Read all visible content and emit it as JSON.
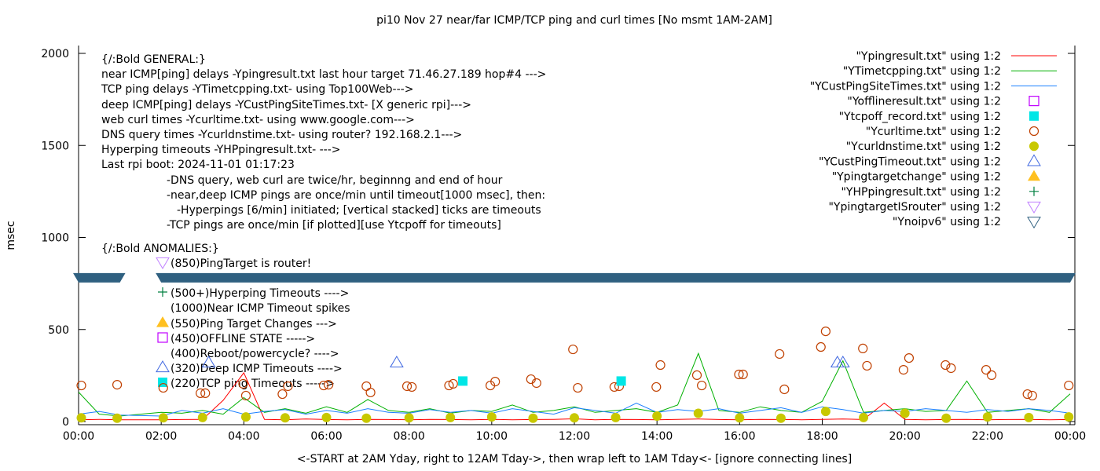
{
  "chart_data": {
    "type": "line",
    "title": "pi10 Nov 27  near/far ICMP/TCP ping and curl times [No msmt 1AM-2AM]",
    "xlabel": "<-START at 2AM Yday, right to 12AM Tday->, then wrap left to 1AM Tday<- [ignore connecting lines]",
    "ylabel": "msec",
    "ylim": [
      0,
      2000
    ],
    "xlim": [
      "00:00",
      "24:00"
    ],
    "yticks": [
      "0",
      "500",
      "1000",
      "1500",
      "2000"
    ],
    "xticks": [
      "00:00",
      "02:00",
      "04:00",
      "06:00",
      "08:00",
      "10:00",
      "12:00",
      "14:00",
      "16:00",
      "18:00",
      "20:00",
      "22:00",
      "00:00"
    ],
    "grid": false,
    "legend_position": "top-right",
    "notes": [
      "{/:Bold GENERAL:}",
      "near ICMP[ping] delays -Ypingresult.txt last hour target 71.46.27.189 hop#4 --->",
      "TCP ping delays -YTimetcpping.txt- using Top100Web--->",
      "deep ICMP[ping] delays -YCustPingSiteTimes.txt- [X generic rpi]--->",
      "web curl times -Ycurltime.txt- using www.google.com--->",
      "DNS query times -Ycurldnstime.txt- using router? 192.168.2.1--->",
      "Hyperping timeouts -YHPpingresult.txt- --->",
      "Last rpi boot: 2024-11-01 01:17:23",
      "-DNS query, web curl are twice/hr, beginnng and end of hour",
      "-near,deep ICMP pings are once/min until timeout[1000 msec], then:",
      "-Hyperpings [6/min] initiated; [vertical stacked] ticks are timeouts",
      "-TCP pings are once/min [if plotted][use Ytcpoff for timeouts]",
      "{/:Bold ANOMALIES:}"
    ],
    "anomaly_keys": [
      {
        "text": "(850)PingTarget is router!",
        "symbol": "YpingtargetISrouter"
      },
      {
        "text": "(500+)Hyperping Timeouts ---->",
        "symbol": "YHPpingresult"
      },
      {
        "text": "(1000)Near ICMP Timeout spikes",
        "symbol": ""
      },
      {
        "text": "(550)Ping Target Changes --->",
        "symbol": "Ypingtargetchange"
      },
      {
        "text": "(450)OFFLINE STATE ----->",
        "symbol": "Yofflineresult"
      },
      {
        "text": "(400)Reboot/powercycle? ---->",
        "symbol": ""
      },
      {
        "text": "(320)Deep ICMP Timeouts ---->",
        "symbol": "YCustPingTimeout"
      },
      {
        "text": "(220)TCP ping Timeouts ----->",
        "symbol": "Ytcpoff_record"
      }
    ],
    "legend": [
      {
        "label": "\"Ypingresult.txt\" using 1:2",
        "style": "line",
        "color": "#ff0000"
      },
      {
        "label": "\"YTimetcpping.txt\" using 1:2",
        "style": "line",
        "color": "#00b000"
      },
      {
        "label": "\"YCustPingSiteTimes.txt\" using 1:2",
        "style": "line",
        "color": "#1a7fff"
      },
      {
        "label": "\"Yofflineresult.txt\" using 1:2",
        "style": "open-square",
        "color": "#c000ff"
      },
      {
        "label": "\"Ytcpoff_record.txt\" using 1:2",
        "style": "filled-square",
        "color": "#00e6e6"
      },
      {
        "label": "\"Ycurltime.txt\" using 1:2",
        "style": "open-circle",
        "color": "#c04000"
      },
      {
        "label": "\"Ycurldnstime.txt\" using 1:2",
        "style": "filled-circle",
        "color": "#c8c800"
      },
      {
        "label": "\"YCustPingTimeout.txt\" using 1:2",
        "style": "open-triangle-up",
        "color": "#4169e1"
      },
      {
        "label": "\"Ypingtargetchange\" using 1:2",
        "style": "filled-triangle-up",
        "color": "#ffc020"
      },
      {
        "label": "\"YHPpingresult.txt\" using 1:2",
        "style": "plus",
        "color": "#008040"
      },
      {
        "label": "\"YpingtargetISrouter\" using 1:2",
        "style": "open-triangle-down",
        "color": "#c080ff"
      },
      {
        "label": "\"Ynoipv6\" using 1:2",
        "style": "open-triangle-down",
        "color": "#306080"
      }
    ],
    "x": [
      "00:00",
      "00:30",
      "01:00",
      "01:30",
      "02:00",
      "02:30",
      "03:00",
      "03:30",
      "04:00",
      "04:30",
      "05:00",
      "05:30",
      "06:00",
      "06:30",
      "07:00",
      "07:30",
      "08:00",
      "08:30",
      "09:00",
      "09:30",
      "10:00",
      "10:30",
      "11:00",
      "11:30",
      "12:00",
      "12:30",
      "13:00",
      "13:30",
      "14:00",
      "14:30",
      "15:00",
      "15:30",
      "16:00",
      "16:30",
      "17:00",
      "17:30",
      "18:00",
      "18:30",
      "19:00",
      "19:30",
      "20:00",
      "20:30",
      "21:00",
      "21:30",
      "22:00",
      "22:30",
      "23:00",
      "23:30",
      "24:00"
    ],
    "series": [
      {
        "name": "\"Ypingresult.txt\" using 1:2",
        "color": "#ff0000",
        "values": [
          10,
          12,
          10,
          null,
          10,
          11,
          12,
          115,
          265,
          12,
          10,
          14,
          11,
          10,
          12,
          11,
          10,
          12,
          11,
          10,
          12,
          10,
          11,
          12,
          15,
          10,
          12,
          11,
          10,
          12,
          14,
          11,
          10,
          12,
          11,
          10,
          12,
          14,
          11,
          100,
          12,
          10,
          11,
          12,
          10,
          11,
          12,
          10,
          11
        ]
      },
      {
        "name": "\"YTimetcpping.txt\" using 1:2",
        "color": "#00b000",
        "values": [
          160,
          40,
          30,
          null,
          50,
          45,
          60,
          40,
          130,
          50,
          70,
          45,
          80,
          50,
          120,
          60,
          50,
          70,
          45,
          60,
          55,
          90,
          50,
          60,
          80,
          50,
          60,
          70,
          50,
          90,
          370,
          60,
          50,
          80,
          60,
          50,
          110,
          330,
          50,
          60,
          70,
          55,
          60,
          220,
          50,
          60,
          70,
          50,
          150
        ]
      },
      {
        "name": "\"YCustPingSiteTimes.txt\" using 1:2",
        "color": "#1a7fff",
        "values": [
          40,
          55,
          35,
          null,
          30,
          60,
          45,
          70,
          40,
          55,
          65,
          40,
          60,
          45,
          70,
          50,
          45,
          65,
          50,
          60,
          45,
          70,
          55,
          40,
          75,
          60,
          45,
          100,
          50,
          65,
          55,
          70,
          45,
          60,
          75,
          50,
          80,
          65,
          45,
          60,
          55,
          70,
          60,
          50,
          65,
          55,
          70,
          60,
          45
        ]
      }
    ],
    "curl_times": [
      [
        "00:04",
        196
      ],
      [
        "00:56",
        200
      ],
      [
        "02:03",
        183
      ],
      [
        "02:57",
        154
      ],
      [
        "03:04",
        154
      ],
      [
        "03:59",
        205
      ],
      [
        "04:03",
        141
      ],
      [
        "04:56",
        149
      ],
      [
        "05:04",
        192
      ],
      [
        "05:56",
        196
      ],
      [
        "06:03",
        200
      ],
      [
        "06:58",
        192
      ],
      [
        "07:04",
        158
      ],
      [
        "07:57",
        192
      ],
      [
        "08:04",
        188
      ],
      [
        "08:58",
        196
      ],
      [
        "09:04",
        205
      ],
      [
        "09:58",
        196
      ],
      [
        "10:05",
        217
      ],
      [
        "10:57",
        230
      ],
      [
        "11:05",
        209
      ],
      [
        "11:58",
        392
      ],
      [
        "12:05",
        183
      ],
      [
        "12:58",
        188
      ],
      [
        "13:05",
        192
      ],
      [
        "13:59",
        188
      ],
      [
        "14:05",
        307
      ],
      [
        "14:58",
        252
      ],
      [
        "15:05",
        196
      ],
      [
        "15:59",
        256
      ],
      [
        "16:05",
        256
      ],
      [
        "16:58",
        367
      ],
      [
        "17:05",
        175
      ],
      [
        "17:58",
        405
      ],
      [
        "18:05",
        490
      ],
      [
        "18:59",
        397
      ],
      [
        "19:05",
        303
      ],
      [
        "19:58",
        281
      ],
      [
        "20:06",
        345
      ],
      [
        "20:59",
        307
      ],
      [
        "21:07",
        290
      ],
      [
        "21:58",
        281
      ],
      [
        "22:06",
        252
      ],
      [
        "22:58",
        149
      ],
      [
        "23:05",
        141
      ],
      [
        "23:58",
        196
      ]
    ],
    "dns_times": [
      [
        "00:04",
        20
      ],
      [
        "00:56",
        18
      ],
      [
        "02:03",
        20
      ],
      [
        "03:00",
        22
      ],
      [
        "04:03",
        25
      ],
      [
        "05:00",
        20
      ],
      [
        "06:00",
        22
      ],
      [
        "06:58",
        18
      ],
      [
        "08:00",
        20
      ],
      [
        "09:00",
        22
      ],
      [
        "10:00",
        25
      ],
      [
        "11:00",
        18
      ],
      [
        "12:00",
        20
      ],
      [
        "13:00",
        22
      ],
      [
        "14:00",
        30
      ],
      [
        "15:00",
        45
      ],
      [
        "16:00",
        20
      ],
      [
        "17:00",
        18
      ],
      [
        "18:05",
        55
      ],
      [
        "19:00",
        22
      ],
      [
        "20:00",
        45
      ],
      [
        "21:00",
        18
      ],
      [
        "22:00",
        25
      ],
      [
        "23:00",
        22
      ],
      [
        "23:58",
        25
      ]
    ],
    "deep_icmp_timeouts": [
      [
        "03:09",
        320
      ],
      [
        "07:42",
        320
      ],
      [
        "18:22",
        320
      ],
      [
        "18:30",
        320
      ]
    ],
    "tcp_timeouts": [
      [
        "09:18",
        220
      ],
      [
        "13:08",
        220
      ]
    ],
    "noipv6": {
      "value": 785,
      "ranges": [
        [
          "00:00",
          "01:00"
        ],
        [
          "02:00",
          "24:00"
        ]
      ]
    }
  }
}
